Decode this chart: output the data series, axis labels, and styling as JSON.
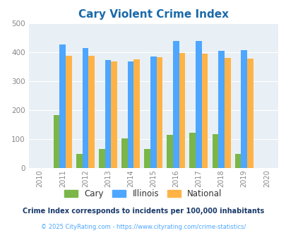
{
  "title": "Cary Violent Crime Index",
  "years": [
    2010,
    2011,
    2012,
    2013,
    2014,
    2015,
    2016,
    2017,
    2018,
    2019,
    2020
  ],
  "data_years": [
    2011,
    2012,
    2013,
    2014,
    2015,
    2016,
    2017,
    2018,
    2019
  ],
  "cary": [
    183,
    48,
    64,
    102,
    64,
    115,
    122,
    116,
    48
  ],
  "illinois": [
    427,
    414,
    374,
    369,
    384,
    438,
    438,
    405,
    408
  ],
  "national": [
    387,
    387,
    367,
    375,
    383,
    397,
    394,
    380,
    379
  ],
  "cary_color": "#7ab648",
  "illinois_color": "#4da6ff",
  "national_color": "#ffb347",
  "bg_color": "#e8f0f5",
  "ylim": [
    0,
    500
  ],
  "yticks": [
    0,
    100,
    200,
    300,
    400,
    500
  ],
  "legend_labels": [
    "Cary",
    "Illinois",
    "National"
  ],
  "footnote1": "Crime Index corresponds to incidents per 100,000 inhabitants",
  "footnote2": "© 2025 CityRating.com - https://www.cityrating.com/crime-statistics/",
  "title_color": "#1a6aaa",
  "footnote1_color": "#1a3a6a",
  "footnote2_color": "#4da6ff",
  "bar_width": 0.27,
  "grid_color": "#ffffff"
}
